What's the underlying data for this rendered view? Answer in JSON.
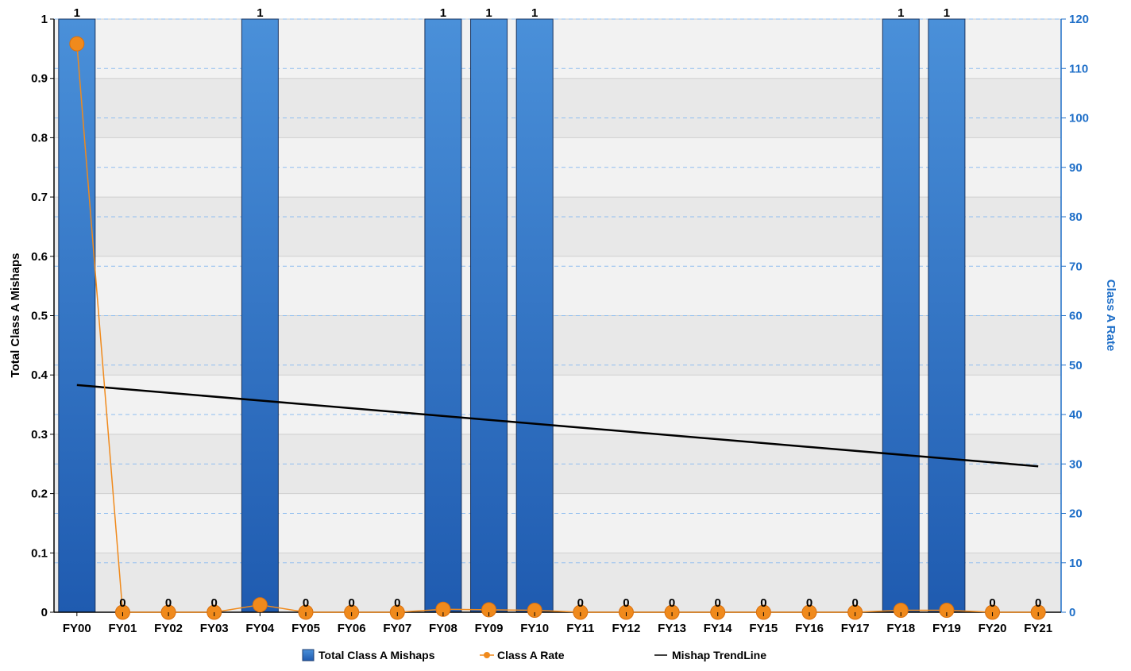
{
  "chart_data": {
    "type": "bar",
    "categories": [
      "FY00",
      "FY01",
      "FY02",
      "FY03",
      "FY04",
      "FY05",
      "FY06",
      "FY07",
      "FY08",
      "FY09",
      "FY10",
      "FY11",
      "FY12",
      "FY13",
      "FY14",
      "FY15",
      "FY16",
      "FY17",
      "FY18",
      "FY19",
      "FY20",
      "FY21"
    ],
    "series": [
      {
        "name": "Total Class A Mishaps",
        "type": "bar",
        "axis": "left",
        "values": [
          1,
          0,
          0,
          0,
          1,
          0,
          0,
          0,
          1,
          1,
          1,
          0,
          0,
          0,
          0,
          0,
          0,
          0,
          1,
          1,
          0,
          0
        ],
        "color": "#2f6fc4"
      },
      {
        "name": "Class A Rate",
        "type": "line",
        "axis": "right",
        "values": [
          115,
          0,
          0,
          0,
          1.5,
          0,
          0,
          0,
          0.6,
          0.5,
          0.4,
          0,
          0,
          0,
          0,
          0,
          0,
          0,
          0.4,
          0.4,
          0,
          0
        ],
        "color": "#f08a1c"
      },
      {
        "name": "Mishap TrendLine",
        "type": "line",
        "axis": "left",
        "values": [
          0.383,
          0.376,
          0.3695,
          0.363,
          0.3565,
          0.35,
          0.3435,
          0.337,
          0.3305,
          0.324,
          0.3175,
          0.311,
          0.3045,
          0.298,
          0.2915,
          0.285,
          0.2785,
          0.272,
          0.2655,
          0.259,
          0.2525,
          0.246
        ],
        "color": "#000000"
      }
    ],
    "ylabel": "Total Class A Mishaps",
    "y2label": "Class A Rate",
    "ylim": [
      0,
      1
    ],
    "y2lim": [
      0,
      120
    ],
    "yticks": [
      "0",
      "0.1",
      "0.2",
      "0.3",
      "0.4",
      "0.5",
      "0.6",
      "0.7",
      "0.8",
      "0.9",
      "1"
    ],
    "y2ticks": [
      "0",
      "10",
      "20",
      "30",
      "40",
      "50",
      "60",
      "70",
      "80",
      "90",
      "100",
      "110",
      "120"
    ],
    "data_labels": [
      "1",
      "0",
      "0",
      "0",
      "1",
      "0",
      "0",
      "0",
      "1",
      "1",
      "1",
      "0",
      "0",
      "0",
      "0",
      "0",
      "0",
      "0",
      "1",
      "1",
      "0",
      "0"
    ],
    "legend_position": "bottom",
    "grid": true
  }
}
